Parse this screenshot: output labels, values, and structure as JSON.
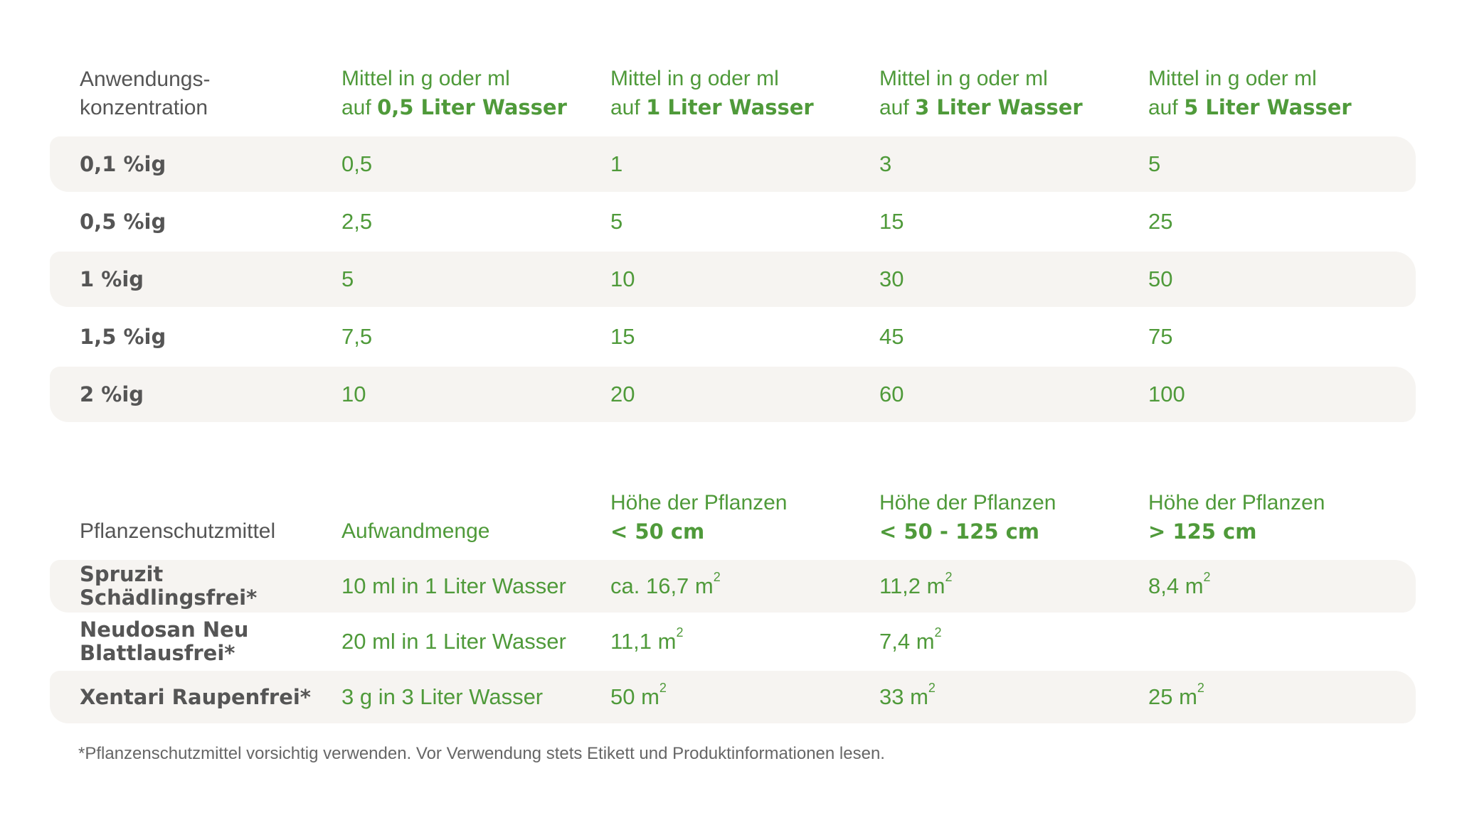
{
  "table1": {
    "header": {
      "concentration_line1": "Anwendungs-",
      "concentration_line2": "konzentration",
      "columns": [
        {
          "line1": "Mittel in g oder ml",
          "prefix": "auf",
          "bold": "0,5 Liter Wasser"
        },
        {
          "line1": "Mittel in g oder ml",
          "prefix": "auf",
          "bold": "1 Liter Wasser"
        },
        {
          "line1": "Mittel in g oder ml",
          "prefix": "auf",
          "bold": "3 Liter Wasser"
        },
        {
          "line1": "Mittel in g oder ml",
          "prefix": "auf",
          "bold": "5 Liter Wasser"
        }
      ]
    },
    "rows": [
      {
        "label": "0,1 %ig",
        "values": [
          "0,5",
          "1",
          "3",
          "5"
        ]
      },
      {
        "label": "0,5 %ig",
        "values": [
          "2,5",
          "5",
          "15",
          "25"
        ]
      },
      {
        "label": "1 %ig",
        "values": [
          "5",
          "10",
          "30",
          "50"
        ]
      },
      {
        "label": "1,5 %ig",
        "values": [
          "7,5",
          "15",
          "45",
          "75"
        ]
      },
      {
        "label": "2 %ig",
        "values": [
          "10",
          "20",
          "60",
          "100"
        ]
      }
    ]
  },
  "table2": {
    "header": {
      "product": "Pflanzenschutzmittel",
      "amount": "Aufwandmenge",
      "heights": [
        {
          "line1": "Höhe der Pflanzen",
          "bold": "< 50 cm"
        },
        {
          "line1": "Höhe der Pflanzen",
          "bold": "< 50 - 125 cm"
        },
        {
          "line1": "Höhe der Pflanzen",
          "bold": "> 125 cm"
        }
      ]
    },
    "rows": [
      {
        "label": "Spruzit Schädlingsfrei*",
        "amount": "10 ml in 1 Liter Wasser",
        "values": [
          "ca. 16,7 m",
          "11,2 m",
          "8,4 m"
        ]
      },
      {
        "label_line1": "Neudosan Neu",
        "label_line2": "Blattlausfrei*",
        "amount": "20 ml in 1 Liter Wasser",
        "values": [
          "11,1 m",
          "7,4 m",
          ""
        ]
      },
      {
        "label": "Xentari Raupenfrei*",
        "amount": "3 g in 3 Liter Wasser",
        "values": [
          "50 m",
          "33 m",
          "25 m"
        ]
      }
    ],
    "superscript": "2"
  },
  "footnote": "*Pflanzenschutzmittel vorsichtig verwenden. Vor Verwendung stets Etikett und Produktinformationen lesen.",
  "colors": {
    "green": "#4f9a3a",
    "gray_text": "#555555",
    "row_shade": "#f6f4f1"
  }
}
